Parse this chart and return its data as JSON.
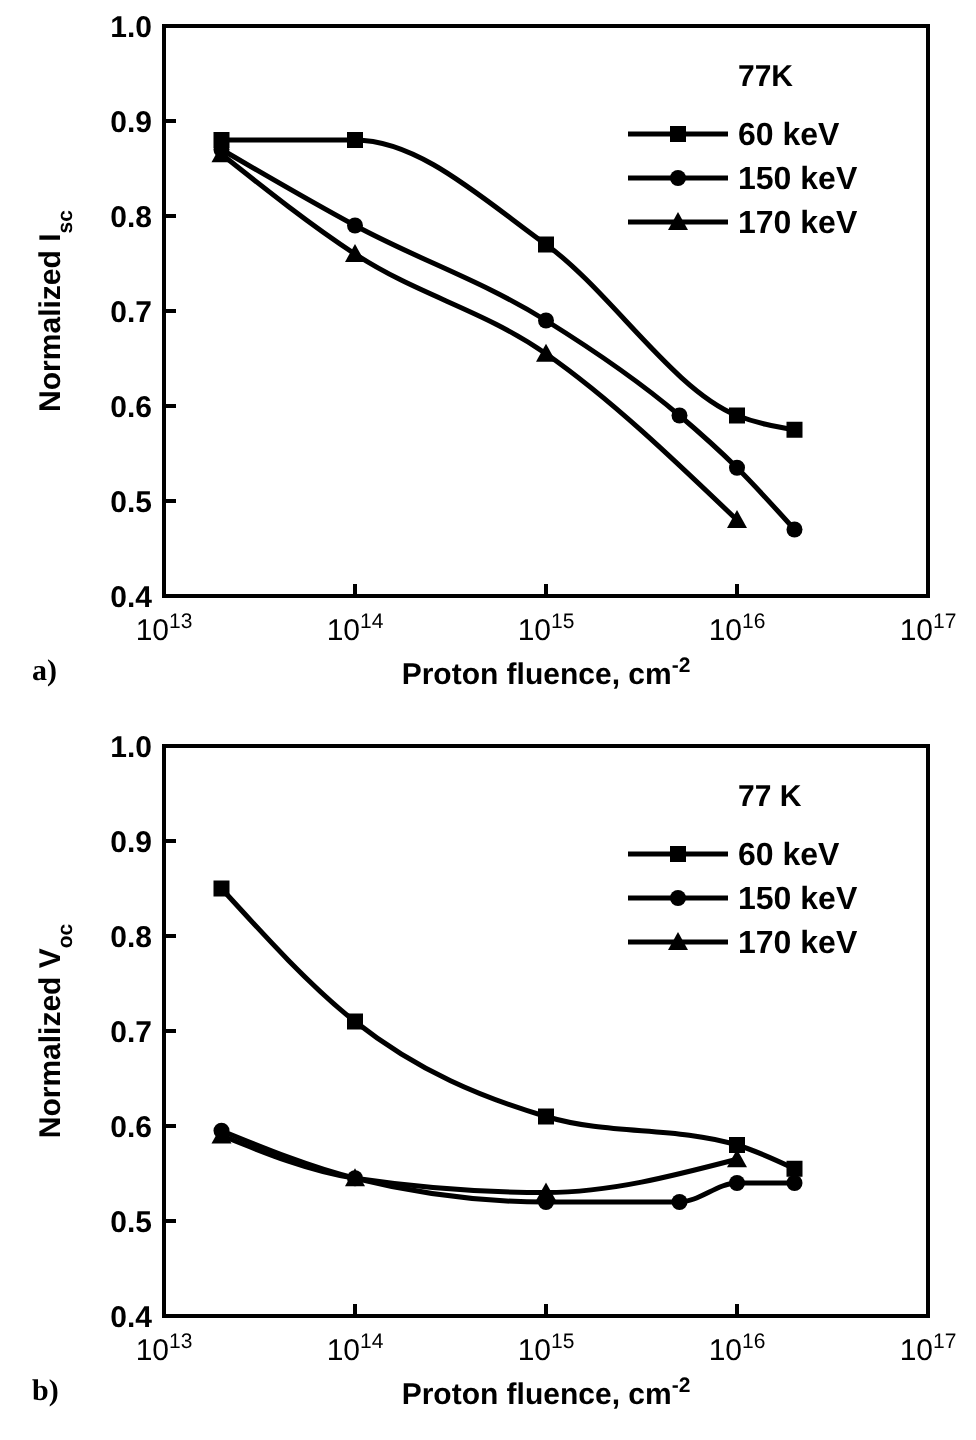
{
  "chart_data": [
    {
      "type": "line",
      "xlabel": "Proton fluence, cm$^{-2}$",
      "ylabel": "Normalized I$_{sc}$",
      "legend_title": "77K",
      "legend": "top right",
      "log": "x",
      "xlim": [
        10000000000000.0,
        1e+17
      ],
      "xticks": [
        {
          "value": 10000000000000.0,
          "label": "10$^{13}$"
        },
        {
          "value": 100000000000000.0,
          "label": "10$^{14}$"
        },
        {
          "value": 1000000000000000.0,
          "label": "10$^{15}$"
        },
        {
          "value": 1e+16,
          "label": "10$^{16}$"
        },
        {
          "value": 1e+17,
          "label": "10$^{17}$"
        }
      ],
      "ylim": [
        0.4,
        1.0
      ],
      "yticks": [
        {
          "value": 0.4,
          "label": "0.4"
        },
        {
          "value": 0.5,
          "label": "0.5"
        },
        {
          "value": 0.6,
          "label": "0.6"
        },
        {
          "value": 0.7,
          "label": "0.7"
        },
        {
          "value": 0.8,
          "label": "0.8"
        },
        {
          "value": 0.9,
          "label": "0.9"
        },
        {
          "value": 1.0,
          "label": "1.0"
        }
      ],
      "annotations": [
        "a)"
      ],
      "series": [
        {
          "name": "60 keV",
          "color": "#000000",
          "marker": "square",
          "x": [
            20000000000000.0,
            100000000000000.0,
            1000000000000000.0,
            1e+16,
            2e+16
          ],
          "values": [
            0.88,
            0.88,
            0.77,
            0.59,
            0.575
          ]
        },
        {
          "name": "150 keV",
          "color": "#000000",
          "marker": "circle",
          "x": [
            20000000000000.0,
            100000000000000.0,
            1000000000000000.0,
            5000000000000000.0,
            1e+16,
            2e+16
          ],
          "values": [
            0.87,
            0.79,
            0.69,
            0.59,
            0.535,
            0.47
          ]
        },
        {
          "name": "170 keV",
          "color": "#000000",
          "marker": "triangle",
          "x": [
            20000000000000.0,
            100000000000000.0,
            1000000000000000.0,
            1e+16
          ],
          "values": [
            0.865,
            0.76,
            0.655,
            0.48
          ]
        }
      ]
    },
    {
      "type": "line",
      "xlabel": "Proton fluence, cm$^{-2}$",
      "ylabel": "Normalized V$_{oc}$",
      "legend_title": "77 K",
      "legend": "top right",
      "log": "x",
      "xlim": [
        10000000000000.0,
        1e+17
      ],
      "xticks": [
        {
          "value": 10000000000000.0,
          "label": "10$^{13}$"
        },
        {
          "value": 100000000000000.0,
          "label": "10$^{14}$"
        },
        {
          "value": 1000000000000000.0,
          "label": "10$^{15}$"
        },
        {
          "value": 1e+16,
          "label": "10$^{16}$"
        },
        {
          "value": 1e+17,
          "label": "10$^{17}$"
        }
      ],
      "ylim": [
        0.4,
        1.0
      ],
      "yticks": [
        {
          "value": 0.4,
          "label": "0.4"
        },
        {
          "value": 0.5,
          "label": "0.5"
        },
        {
          "value": 0.6,
          "label": "0.6"
        },
        {
          "value": 0.7,
          "label": "0.7"
        },
        {
          "value": 0.8,
          "label": "0.8"
        },
        {
          "value": 0.9,
          "label": "0.9"
        },
        {
          "value": 1.0,
          "label": "1.0"
        }
      ],
      "annotations": [
        "b)"
      ],
      "series": [
        {
          "name": "60 keV",
          "color": "#000000",
          "marker": "square",
          "x": [
            20000000000000.0,
            100000000000000.0,
            1000000000000000.0,
            1e+16,
            2e+16
          ],
          "values": [
            0.85,
            0.71,
            0.61,
            0.58,
            0.555
          ]
        },
        {
          "name": "150 keV",
          "color": "#000000",
          "marker": "circle",
          "x": [
            20000000000000.0,
            100000000000000.0,
            1000000000000000.0,
            5000000000000000.0,
            1e+16,
            2e+16
          ],
          "values": [
            0.595,
            0.545,
            0.52,
            0.52,
            0.54,
            0.54
          ]
        },
        {
          "name": "170 keV",
          "color": "#000000",
          "marker": "triangle",
          "x": [
            20000000000000.0,
            100000000000000.0,
            1000000000000000.0,
            1e+16
          ],
          "values": [
            0.59,
            0.545,
            0.53,
            0.565
          ]
        }
      ]
    }
  ]
}
